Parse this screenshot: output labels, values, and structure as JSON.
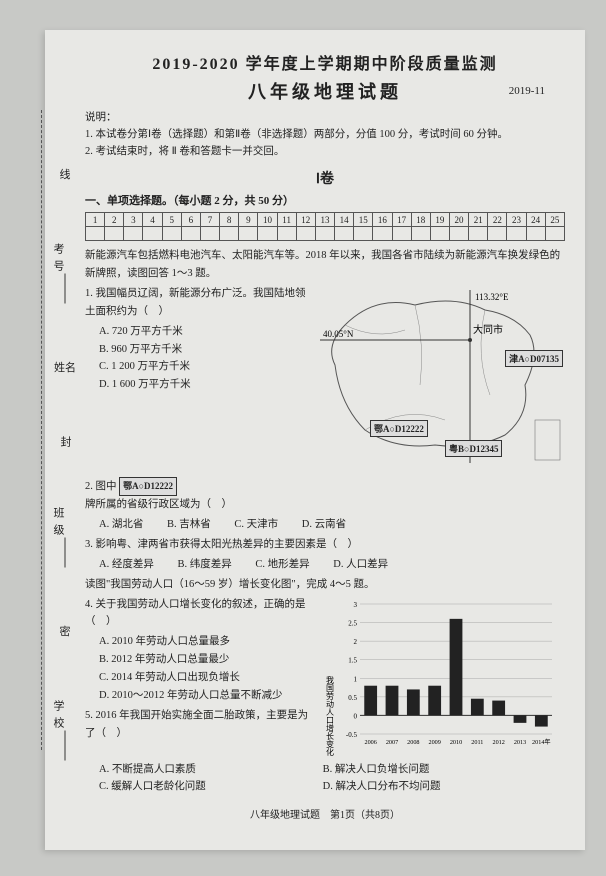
{
  "side": {
    "labels": [
      "线",
      "考号",
      "封",
      "姓名",
      "班级",
      "密",
      "学校"
    ],
    "blank": "______"
  },
  "header": {
    "title": "2019-2020 学年度上学期期中阶段质量监测",
    "subject": "八年级地理试题",
    "date": "2019-11"
  },
  "instructions": {
    "label": "说明：",
    "line1": "1. 本试卷分第Ⅰ卷（选择题）和第Ⅱ卷（非选择题）两部分，分值 100 分，考试时间 60 分钟。",
    "line2": "2. 考试结束时，将 Ⅱ 卷和答题卡一并交回。"
  },
  "volume": "Ⅰ卷",
  "section1_title": "一、单项选择题。（每小题 2 分，共 50 分）",
  "grid_numbers": [
    "1",
    "2",
    "3",
    "4",
    "5",
    "6",
    "7",
    "8",
    "9",
    "10",
    "11",
    "12",
    "13",
    "14",
    "15",
    "16",
    "17",
    "18",
    "19",
    "20",
    "21",
    "22",
    "23",
    "24",
    "25"
  ],
  "intro_text": "新能源汽车包括燃料电池汽车、太阳能汽车等。2018 年以来，我国各省市陆续为新能源汽车换发绿色的新牌照，读图回答 1～3 题。",
  "q1": {
    "stem": "1. 我国幅员辽阔，新能源分布广泛。我国陆地领土面积约为（　）",
    "A": "A. 720 万平方千米",
    "B": "B. 960 万平方千米",
    "C": "C. 1 200 万平方千米",
    "D": "D. 1 600 万平方千米"
  },
  "map": {
    "lon": "113.32°E",
    "lat": "40.05°N",
    "city": "大同市",
    "plates": {
      "jinA": "津A○D07135",
      "eA": "鄂A○D12222",
      "yueB": "粤B○D12345"
    }
  },
  "q2": {
    "stem_pre": "2. 图中",
    "plate": "鄂A○D12222",
    "stem_post": "牌所属的省级行政区域为（　）",
    "A": "A. 湖北省",
    "B": "B. 吉林省",
    "C": "C. 天津市",
    "D": "D. 云南省"
  },
  "q3": {
    "stem": "3. 影响粤、津两省市获得太阳光热差异的主要因素是（　）",
    "A": "A. 经度差异",
    "B": "B. 纬度差异",
    "C": "C. 地形差异",
    "D": "D. 人口差异"
  },
  "intro45": "读图\"我国劳动人口（16～59 岁）增长变化图\"，完成 4～5 题。",
  "q4": {
    "stem": "4. 关于我国劳动人口增长变化的叙述，正确的是（　）",
    "A": "A. 2010 年劳动人口总量最多",
    "B": "B. 2012 年劳动人口总量最少",
    "C": "C. 2014 年劳动人口出现负增长",
    "D": "D. 2010～2012 年劳动人口总量不断减少"
  },
  "q5": {
    "stem": "5. 2016 年我国开始实施全面二胎政策，主要是为了（　）",
    "A": "A. 不断提高人口素质",
    "B": "B. 解决人口负增长问题",
    "C": "C. 缓解人口老龄化问题",
    "D": "D. 解决人口分布不均问题"
  },
  "chart": {
    "ylabel": "我国劳动人口增长变化图（%）",
    "ylim": [
      -0.5,
      3.0
    ],
    "yticks": [
      -0.5,
      0,
      0.5,
      1.0,
      1.5,
      2.0,
      2.5,
      3.0
    ],
    "categories": [
      "2006",
      "2007",
      "2008",
      "2009",
      "2010",
      "2011",
      "2012",
      "2013",
      "2014年"
    ],
    "values": [
      0.8,
      0.8,
      0.7,
      0.8,
      2.6,
      0.45,
      0.4,
      -0.2,
      -0.3
    ],
    "bar_color": "#222222",
    "bg": "#e8e8e5",
    "grid_color": "#999"
  },
  "footer": "八年级地理试题　第1页（共8页）"
}
